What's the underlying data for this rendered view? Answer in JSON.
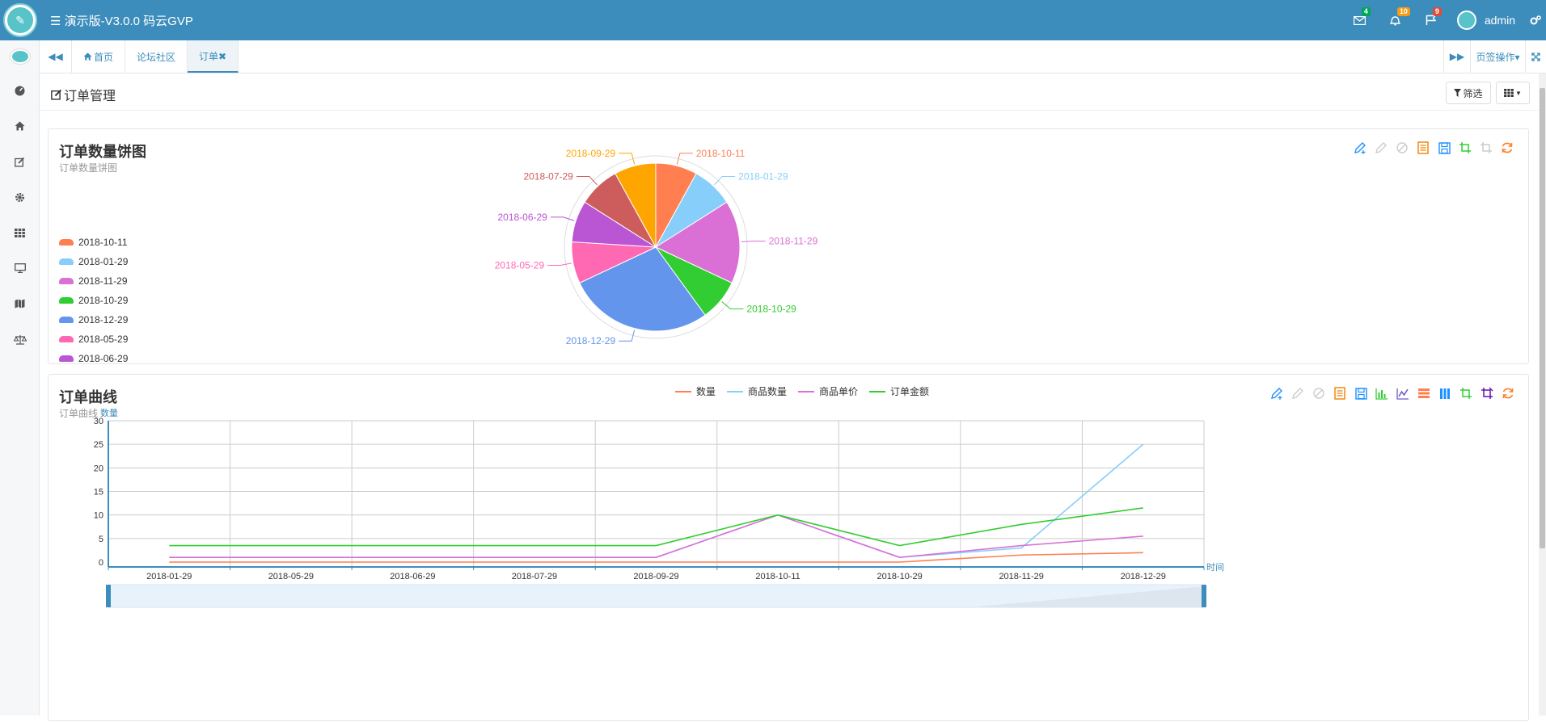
{
  "app": {
    "title": "演示版-V3.0.0 码云GVP"
  },
  "topbar": {
    "mail_badge": "4",
    "bell_badge": "10",
    "flag_badge": "9",
    "username": "admin",
    "colors": {
      "bar": "#3c8dbc",
      "mail_badge": "#00a65a",
      "bell_badge": "#f39c12",
      "flag_badge": "#dd4b39"
    }
  },
  "sidebar": {
    "items": [
      "avatar",
      "dashboard-icon",
      "home-icon",
      "edit-icon",
      "gear-icon",
      "grid-icon",
      "monitor-icon",
      "map-icon",
      "balance-icon"
    ]
  },
  "tabs": {
    "items": [
      {
        "label": "首页"
      },
      {
        "label": "论坛社区"
      },
      {
        "label": "订单✖"
      }
    ],
    "active_index": 2,
    "page_ops": "页签操作▾"
  },
  "page": {
    "title": "订单管理",
    "filter_button": "筛选"
  },
  "pie_panel": {
    "title": "订单数量饼图",
    "subtitle": "订单数量饼图"
  },
  "line_panel": {
    "title": "订单曲线",
    "subtitle": "订单曲线"
  },
  "chart_data": [
    {
      "type": "pie",
      "title": "订单数量饼图",
      "subtitle": "订单数量饼图",
      "legend_position": "left",
      "categories": [
        "2018-10-11",
        "2018-01-29",
        "2018-11-29",
        "2018-10-29",
        "2018-12-29",
        "2018-05-29",
        "2018-06-29",
        "2018-07-29",
        "2018-09-29"
      ],
      "values": [
        2,
        2,
        4,
        2,
        7,
        2,
        2,
        2,
        2
      ],
      "colors": [
        "#ff7f50",
        "#87cefa",
        "#da70d6",
        "#32cd32",
        "#6495ed",
        "#ff69b4",
        "#ba55d3",
        "#cd5c5c",
        "#ffa500"
      ]
    },
    {
      "type": "line",
      "title": "订单曲线",
      "subtitle": "订单曲线",
      "legend_position": "top",
      "xlabel": "时间",
      "ylabel": "数量",
      "ylim": [
        0,
        30
      ],
      "yticks": [
        0,
        5,
        10,
        15,
        20,
        25,
        30
      ],
      "grid": true,
      "categories": [
        "2018-01-29",
        "2018-05-29",
        "2018-06-29",
        "2018-07-29",
        "2018-09-29",
        "2018-10-11",
        "2018-10-29",
        "2018-11-29",
        "2018-12-29"
      ],
      "series": [
        {
          "name": "数量",
          "color": "#ff7f50",
          "values": [
            0,
            0,
            0,
            0,
            0,
            0,
            0,
            1.5,
            2
          ]
        },
        {
          "name": "商品数量",
          "color": "#87cefa",
          "values": [
            1,
            1,
            1,
            1,
            1,
            10,
            1,
            3,
            25
          ]
        },
        {
          "name": "商品单价",
          "color": "#da70d6",
          "values": [
            1,
            1,
            1,
            1,
            1,
            10,
            1,
            3.5,
            5.5
          ]
        },
        {
          "name": "订单金额",
          "color": "#32cd32",
          "values": [
            3.5,
            3.5,
            3.5,
            3.5,
            3.5,
            10,
            3.5,
            8,
            11.5
          ]
        }
      ]
    }
  ]
}
